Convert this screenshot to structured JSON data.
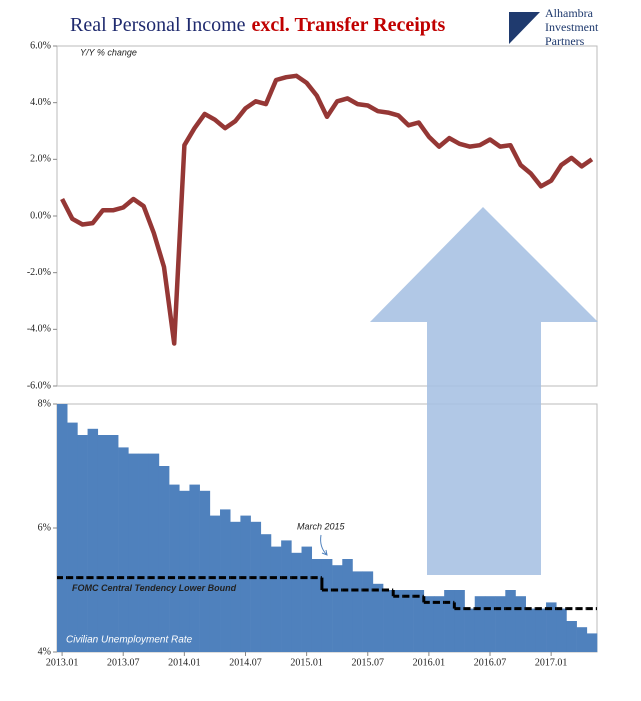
{
  "header": {
    "title": "Real Personal Income",
    "title_emphasis": "excl. Transfer Receipts",
    "logo": [
      "Alhambra",
      "Investment",
      "Partners"
    ]
  },
  "chart_data": [
    {
      "type": "line",
      "subtitle": "Y/Y % change",
      "color": "#953735",
      "values": [
        0.6,
        -0.1,
        -0.3,
        -0.25,
        0.2,
        0.2,
        0.3,
        0.6,
        0.35,
        -0.6,
        -1.8,
        -4.5,
        2.5,
        3.1,
        3.6,
        3.4,
        3.1,
        3.35,
        3.8,
        4.05,
        3.95,
        4.8,
        4.9,
        4.95,
        4.7,
        4.25,
        3.5,
        4.05,
        4.15,
        3.95,
        3.9,
        3.7,
        3.65,
        3.55,
        3.2,
        3.3,
        2.8,
        2.45,
        2.75,
        2.55,
        2.45,
        2.5,
        2.7,
        2.45,
        2.5,
        1.8,
        1.5,
        1.05,
        1.25,
        1.8,
        2.05,
        1.75,
        2.0
      ],
      "ylim": [
        -6,
        6
      ],
      "yticks": [
        {
          "value": -6,
          "label": "-6.0%"
        },
        {
          "value": -4,
          "label": "-4.0%"
        },
        {
          "value": -2,
          "label": "-2.0%"
        },
        {
          "value": 0,
          "label": "0.0%"
        },
        {
          "value": 2,
          "label": "2.0%"
        },
        {
          "value": 4,
          "label": "4.0%"
        },
        {
          "value": 6,
          "label": "6.0%"
        }
      ]
    },
    {
      "type": "bar",
      "annotation": "March 2015",
      "annotation_index": 26,
      "categories": [
        "2013.01",
        null,
        null,
        null,
        null,
        null,
        "2013.07",
        null,
        null,
        null,
        null,
        null,
        "2014.01",
        null,
        null,
        null,
        null,
        null,
        "2014.07",
        null,
        null,
        null,
        null,
        null,
        "2015.01",
        null,
        null,
        null,
        null,
        null,
        "2015.07",
        null,
        null,
        null,
        null,
        null,
        "2016.01",
        null,
        null,
        null,
        null,
        null,
        "2016.07",
        null,
        null,
        null,
        null,
        null,
        "2017.01",
        null,
        null,
        null,
        null
      ],
      "series": [
        {
          "name": "Civilian Unemployment Rate",
          "color": "#4f81bd",
          "values": [
            8.0,
            7.7,
            7.5,
            7.6,
            7.5,
            7.5,
            7.3,
            7.2,
            7.2,
            7.2,
            7.0,
            6.7,
            6.6,
            6.7,
            6.6,
            6.2,
            6.3,
            6.1,
            6.2,
            6.1,
            5.9,
            5.7,
            5.8,
            5.6,
            5.7,
            5.5,
            5.5,
            5.4,
            5.5,
            5.3,
            5.3,
            5.1,
            5.0,
            5.0,
            5.0,
            5.0,
            4.9,
            4.9,
            5.0,
            5.0,
            4.7,
            4.9,
            4.9,
            4.9,
            5.0,
            4.9,
            4.7,
            4.7,
            4.8,
            4.7,
            4.5,
            4.4,
            4.3
          ]
        },
        {
          "name": "FOMC Central Tendency Lower Bound",
          "color": "#000000",
          "values": [
            5.2,
            5.2,
            5.2,
            5.2,
            5.2,
            5.2,
            5.2,
            5.2,
            5.2,
            5.2,
            5.2,
            5.2,
            5.2,
            5.2,
            5.2,
            5.2,
            5.2,
            5.2,
            5.2,
            5.2,
            5.2,
            5.2,
            5.2,
            5.2,
            5.2,
            5.2,
            5.0,
            5.0,
            5.0,
            5.0,
            5.0,
            5.0,
            5.0,
            4.9,
            4.9,
            4.9,
            4.8,
            4.8,
            4.8,
            4.7,
            4.7,
            4.7,
            4.7,
            4.7,
            4.7,
            4.7,
            4.7,
            4.7,
            4.7,
            4.7,
            4.7,
            4.7,
            4.7
          ]
        }
      ],
      "ylim": [
        4,
        8
      ],
      "yticks": [
        {
          "value": 4,
          "label": "4%"
        },
        {
          "value": 6,
          "label": "6%"
        },
        {
          "value": 8,
          "label": "8%"
        }
      ]
    }
  ]
}
